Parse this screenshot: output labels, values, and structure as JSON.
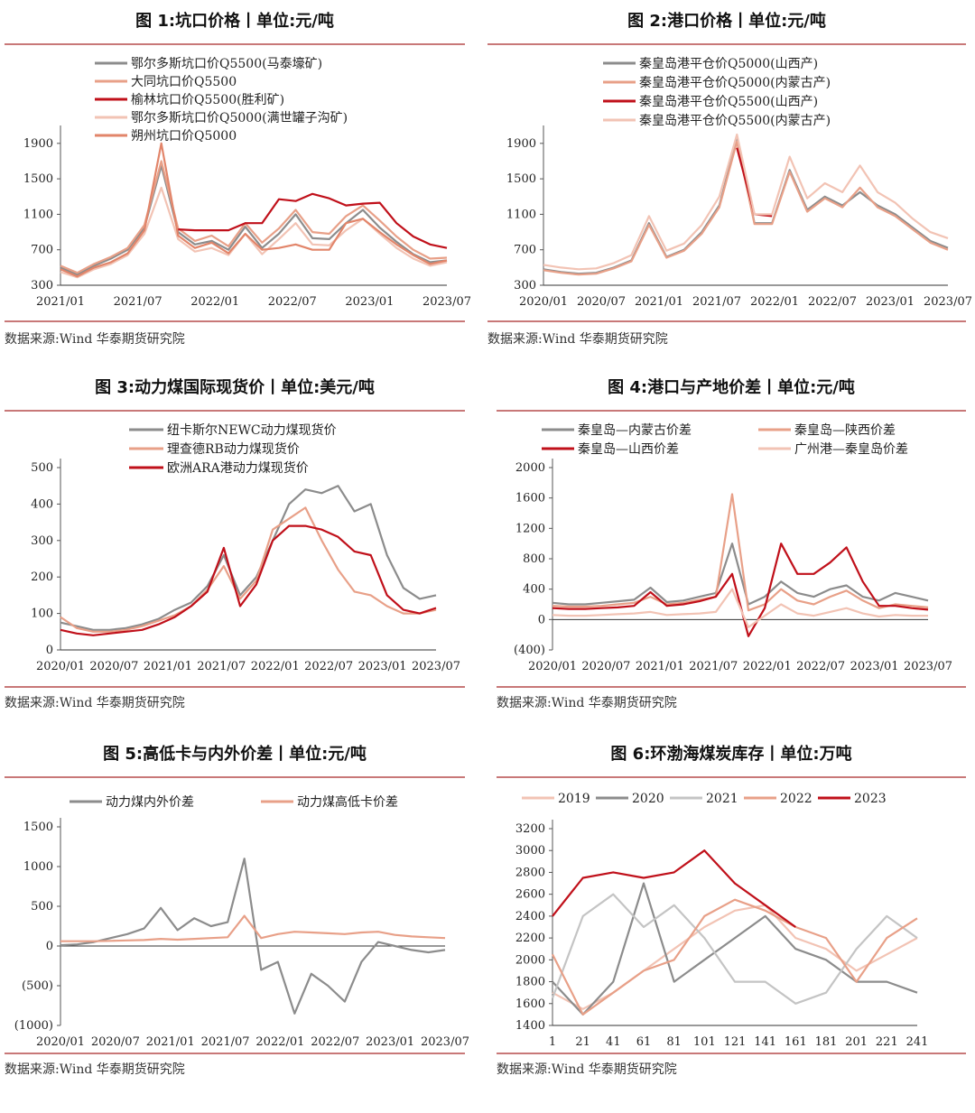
{
  "source_text": "数据来源:Wind 华泰期货研究院",
  "chart_data": [
    {
      "type": "line",
      "title": "图 1:坑口价格丨单位:元/吨",
      "xlabel": "",
      "ylabel": "",
      "x_ticks": [
        "2021/01",
        "2021/07",
        "2022/01",
        "2022/07",
        "2023/01",
        "2023/07"
      ],
      "y_ticks": [
        300,
        700,
        1100,
        1500,
        1900
      ],
      "ylim": [
        300,
        2000
      ],
      "legend_position": "top-center",
      "series": [
        {
          "name": "鄂尔多斯坑口价Q5500(马泰壕矿)",
          "color": "#8c8c8c",
          "values": [
            500,
            420,
            520,
            600,
            700,
            950,
            1650,
            900,
            760,
            800,
            700,
            960,
            720,
            880,
            1100,
            830,
            820,
            1000,
            1150,
            950,
            790,
            650,
            560,
            580
          ]
        },
        {
          "name": "大同坑口价Q5500",
          "color": "#e8a088",
          "values": [
            520,
            440,
            540,
            620,
            720,
            980,
            1700,
            940,
            800,
            860,
            740,
            1000,
            780,
            940,
            1150,
            900,
            880,
            1080,
            1200,
            1030,
            850,
            700,
            600,
            610
          ]
        },
        {
          "name": "榆林坑口价Q5500(胜利矿)",
          "color": "#c0101a",
          "values": [
            null,
            null,
            null,
            null,
            null,
            null,
            null,
            930,
            920,
            920,
            920,
            1000,
            1000,
            1270,
            1250,
            1330,
            1280,
            1200,
            1220,
            1230,
            1000,
            850,
            760,
            720
          ]
        },
        {
          "name": "鄂尔多斯坑口价Q5000(满世罐子沟矿)",
          "color": "#f2c3b4",
          "values": [
            450,
            390,
            480,
            540,
            640,
            880,
            1400,
            820,
            680,
            720,
            640,
            880,
            650,
            820,
            1000,
            760,
            750,
            920,
            1050,
            880,
            720,
            600,
            520,
            560
          ]
        },
        {
          "name": "朔州坑口价Q5000",
          "color": "#e2856a",
          "values": [
            480,
            400,
            500,
            560,
            660,
            920,
            1900,
            860,
            720,
            780,
            660,
            880,
            700,
            720,
            760,
            700,
            700,
            1000,
            1050,
            900,
            760,
            640,
            540,
            580
          ]
        }
      ]
    },
    {
      "type": "line",
      "title": "图 2:港口价格丨单位:元/吨",
      "xlabel": "",
      "ylabel": "",
      "x_ticks": [
        "2020/01",
        "2020/07",
        "2021/01",
        "2021/07",
        "2022/01",
        "2022/07",
        "2023/01",
        "2023/07"
      ],
      "y_ticks": [
        300,
        700,
        1100,
        1500,
        1900
      ],
      "ylim": [
        300,
        2000
      ],
      "legend_position": "top-center",
      "series": [
        {
          "name": "秦皇岛港平仓价Q5000(山西产)",
          "color": "#8c8c8c",
          "values": [
            480,
            450,
            430,
            440,
            500,
            580,
            1000,
            620,
            700,
            900,
            1200,
            1950,
            1000,
            1000,
            1600,
            1150,
            1300,
            1200,
            1350,
            1200,
            1100,
            950,
            800,
            720
          ]
        },
        {
          "name": "秦皇岛港平仓价Q5000(内蒙古产)",
          "color": "#e8a088",
          "values": [
            470,
            440,
            420,
            430,
            490,
            570,
            980,
            610,
            690,
            880,
            1180,
            1920,
            990,
            990,
            1580,
            1130,
            1280,
            1180,
            1400,
            1180,
            1080,
            930,
            780,
            700
          ]
        },
        {
          "name": "秦皇岛港平仓价Q5500(山西产)",
          "color": "#c0101a",
          "values": [
            null,
            null,
            null,
            null,
            null,
            null,
            null,
            null,
            null,
            null,
            null,
            1850,
            1100,
            1080,
            null,
            null,
            null,
            null,
            null,
            null,
            null,
            null,
            null,
            null
          ]
        },
        {
          "name": "秦皇岛港平仓价Q5500(内蒙古产)",
          "color": "#f2c3b4",
          "values": [
            530,
            500,
            480,
            490,
            550,
            640,
            1080,
            690,
            770,
            980,
            1300,
            2000,
            1100,
            1100,
            1750,
            1280,
            1450,
            1350,
            1650,
            1350,
            1230,
            1050,
            900,
            830
          ]
        }
      ]
    },
    {
      "type": "line",
      "title": "图 3:动力煤国际现货价丨单位:美元/吨",
      "xlabel": "",
      "ylabel": "",
      "x_ticks": [
        "2020/01",
        "2020/07",
        "2021/01",
        "2021/07",
        "2022/01",
        "2022/07",
        "2023/01",
        "2023/07"
      ],
      "y_ticks": [
        0,
        100,
        200,
        300,
        400,
        500
      ],
      "ylim": [
        0,
        500
      ],
      "legend_position": "top-center",
      "series": [
        {
          "name": "纽卡斯尔NEWC动力煤现货价",
          "color": "#8c8c8c",
          "values": [
            75,
            65,
            55,
            55,
            60,
            70,
            85,
            110,
            130,
            175,
            260,
            150,
            200,
            300,
            400,
            440,
            430,
            450,
            380,
            400,
            260,
            170,
            140,
            150
          ]
        },
        {
          "name": "理查德RB动力煤现货价",
          "color": "#e8a088",
          "values": [
            90,
            60,
            50,
            50,
            55,
            65,
            80,
            95,
            120,
            165,
            230,
            140,
            190,
            330,
            360,
            390,
            300,
            220,
            160,
            150,
            120,
            100,
            100,
            110
          ]
        },
        {
          "name": "欧洲ARA港动力煤现货价",
          "color": "#c0101a",
          "values": [
            55,
            45,
            40,
            45,
            50,
            55,
            70,
            90,
            120,
            160,
            280,
            120,
            180,
            300,
            340,
            340,
            330,
            310,
            270,
            260,
            150,
            110,
            100,
            115
          ]
        }
      ]
    },
    {
      "type": "line",
      "title": "图 4:港口与产地价差丨单位:元/吨",
      "xlabel": "",
      "ylabel": "",
      "x_ticks": [
        "2020/01",
        "2020/07",
        "2021/01",
        "2021/07",
        "2022/01",
        "2022/07",
        "2023/01",
        "2023/07"
      ],
      "y_ticks": [
        -400,
        0,
        400,
        800,
        1200,
        1600,
        2000
      ],
      "y_tick_labels": [
        "(400)",
        "0",
        "400",
        "800",
        "1200",
        "1600",
        "2000"
      ],
      "ylim": [
        -400,
        2000
      ],
      "legend_position": "top",
      "series": [
        {
          "name": "秦皇岛—内蒙古价差",
          "color": "#8c8c8c",
          "values": [
            220,
            200,
            200,
            220,
            240,
            260,
            420,
            230,
            250,
            300,
            350,
            1000,
            200,
            300,
            500,
            350,
            300,
            400,
            450,
            300,
            250,
            350,
            300,
            250
          ]
        },
        {
          "name": "秦皇岛—陕西价差",
          "color": "#e8a088",
          "values": [
            180,
            170,
            170,
            180,
            200,
            220,
            300,
            200,
            220,
            260,
            300,
            1650,
            120,
            200,
            400,
            250,
            200,
            300,
            380,
            250,
            150,
            200,
            180,
            160
          ]
        },
        {
          "name": "秦皇岛—山西价差",
          "color": "#c0101a",
          "values": [
            150,
            140,
            140,
            150,
            160,
            180,
            360,
            180,
            200,
            240,
            300,
            600,
            -220,
            150,
            1000,
            600,
            600,
            750,
            950,
            500,
            180,
            180,
            150,
            130
          ]
        },
        {
          "name": "广州港—秦皇岛价差",
          "color": "#f2c3b4",
          "values": [
            60,
            50,
            50,
            60,
            70,
            80,
            100,
            60,
            70,
            80,
            100,
            400,
            -100,
            50,
            200,
            80,
            50,
            100,
            150,
            80,
            40,
            60,
            50,
            50
          ]
        }
      ]
    },
    {
      "type": "line",
      "title": "图 5:高低卡与内外价差丨单位:元/吨",
      "xlabel": "",
      "ylabel": "",
      "x_ticks": [
        "2020/01",
        "2020/07",
        "2021/01",
        "2021/07",
        "2022/01",
        "2022/07",
        "2023/01",
        "2023/07"
      ],
      "y_ticks": [
        -1000,
        -500,
        0,
        500,
        1000,
        1500
      ],
      "y_tick_labels": [
        "(1000)",
        "(500)",
        "0",
        "500",
        "1000",
        "1500"
      ],
      "ylim": [
        -1000,
        1500
      ],
      "legend_position": "top",
      "series": [
        {
          "name": "动力煤内外价差",
          "color": "#8c8c8c",
          "values": [
            10,
            20,
            50,
            100,
            150,
            220,
            480,
            200,
            350,
            250,
            300,
            1100,
            -300,
            -200,
            -850,
            -350,
            -500,
            -700,
            -200,
            50,
            0,
            -50,
            -80,
            -50
          ]
        },
        {
          "name": "动力煤高低卡价差",
          "color": "#e8a088",
          "values": [
            60,
            60,
            60,
            65,
            70,
            75,
            90,
            80,
            90,
            100,
            110,
            380,
            100,
            150,
            180,
            170,
            160,
            150,
            170,
            180,
            140,
            120,
            110,
            100
          ]
        }
      ]
    },
    {
      "type": "line",
      "title": "图 6:环渤海煤炭库存丨单位:万吨",
      "xlabel": "",
      "ylabel": "",
      "x_ticks": [
        "1",
        "21",
        "41",
        "61",
        "81",
        "101",
        "121",
        "141",
        "161",
        "181",
        "201",
        "221",
        "241"
      ],
      "y_ticks": [
        1400,
        1600,
        1800,
        2000,
        2200,
        2400,
        2600,
        2800,
        3000,
        3200
      ],
      "ylim": [
        1400,
        3200
      ],
      "xlim": [
        1,
        251
      ],
      "legend_position": "top",
      "x": [
        1,
        21,
        41,
        61,
        81,
        101,
        121,
        141,
        161,
        181,
        201,
        221,
        241
      ],
      "series": [
        {
          "name": "2019",
          "color": "#f2c3b4",
          "values": [
            1700,
            1550,
            1700,
            1900,
            2100,
            2300,
            2450,
            2500,
            2200,
            2100,
            1900,
            2050,
            2200
          ]
        },
        {
          "name": "2020",
          "color": "#8c8c8c",
          "values": [
            1800,
            1500,
            1800,
            2700,
            1800,
            2000,
            2200,
            2400,
            2100,
            2000,
            1800,
            1800,
            1700
          ]
        },
        {
          "name": "2021",
          "color": "#c4c4c4",
          "values": [
            1650,
            2400,
            2600,
            2300,
            2500,
            2200,
            1800,
            1800,
            1600,
            1700,
            2100,
            2400,
            2200
          ]
        },
        {
          "name": "2022",
          "color": "#e8a088",
          "values": [
            2050,
            1500,
            1700,
            1900,
            2000,
            2400,
            2550,
            2450,
            2300,
            2200,
            1800,
            2200,
            2380
          ]
        },
        {
          "name": "2023",
          "color": "#c0101a",
          "values": [
            2400,
            2750,
            2800,
            2750,
            2800,
            3000,
            2700,
            2500,
            2300,
            null,
            null,
            null,
            null
          ]
        }
      ]
    }
  ]
}
